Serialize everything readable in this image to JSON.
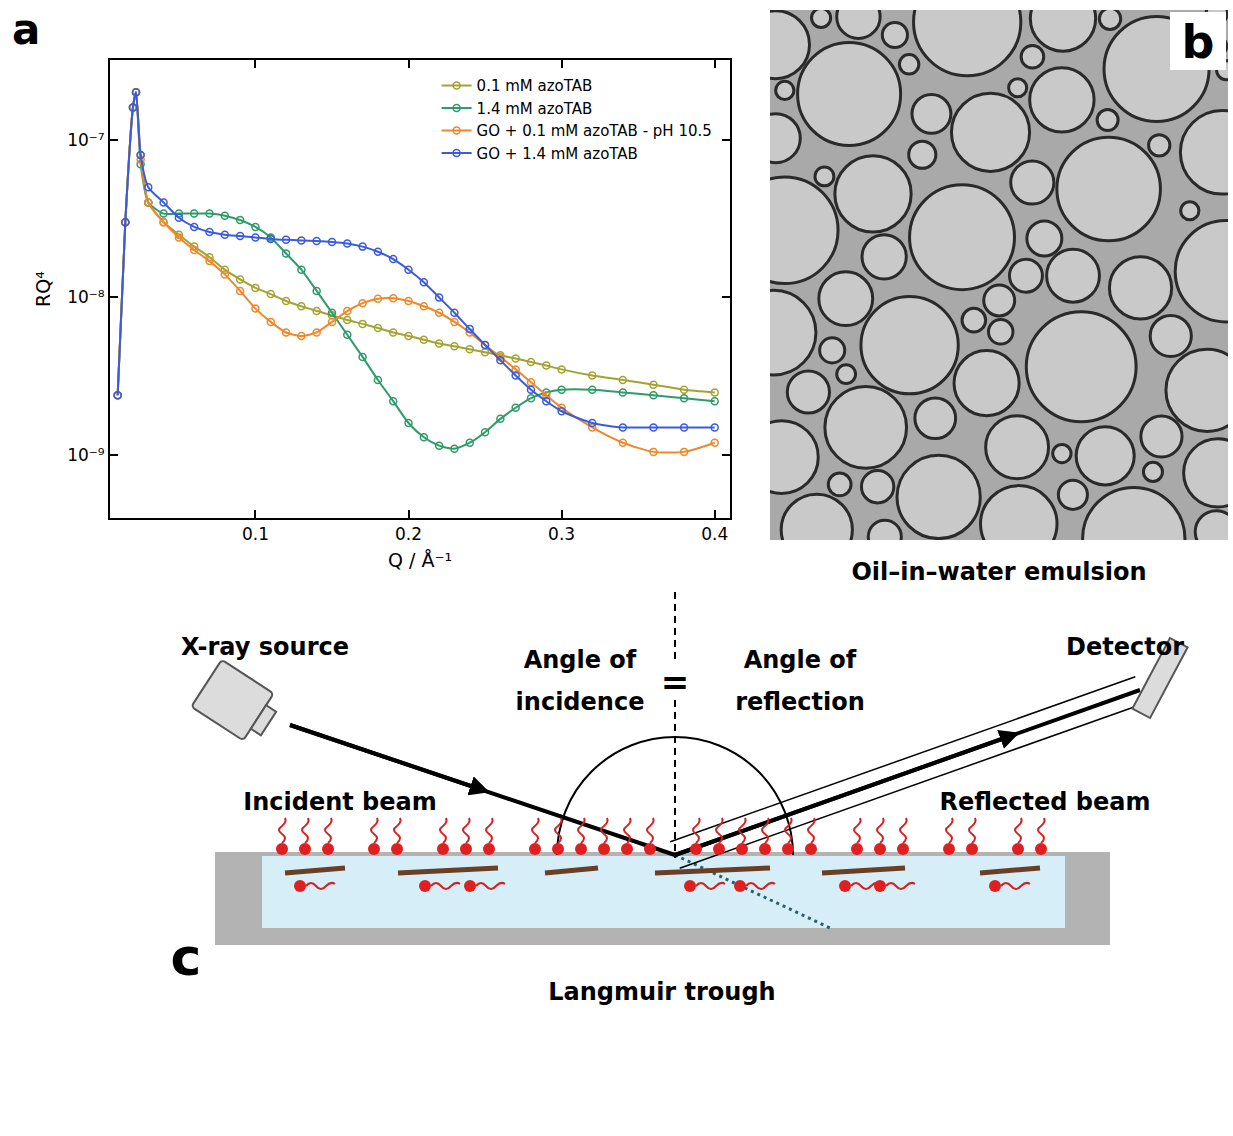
{
  "chart_data": {
    "type": "scatter",
    "x_label": "Q / Å⁻¹",
    "y_label": "RQ⁴",
    "x": [
      0.01,
      0.015,
      0.02,
      0.022,
      0.025,
      0.03,
      0.04,
      0.05,
      0.06,
      0.07,
      0.08,
      0.09,
      0.1,
      0.11,
      0.12,
      0.13,
      0.14,
      0.15,
      0.16,
      0.17,
      0.18,
      0.19,
      0.2,
      0.21,
      0.22,
      0.23,
      0.24,
      0.25,
      0.26,
      0.27,
      0.28,
      0.29,
      0.3,
      0.32,
      0.34,
      0.36,
      0.38,
      0.4
    ],
    "series": [
      {
        "name": "0.1 mM azoTAB",
        "color": "#a3a332",
        "marker": "circle-open",
        "line_style": "solid",
        "values": [
          2.4e-09,
          3e-08,
          1.6e-07,
          2e-07,
          8e-08,
          4e-08,
          3e-08,
          2.5e-08,
          2.1e-08,
          1.8e-08,
          1.5e-08,
          1.3e-08,
          1.15e-08,
          1.05e-08,
          9.5e-09,
          8.8e-09,
          8.2e-09,
          7.7e-09,
          7.2e-09,
          6.8e-09,
          6.4e-09,
          6e-09,
          5.7e-09,
          5.4e-09,
          5.1e-09,
          4.9e-09,
          4.7e-09,
          4.5e-09,
          4.3e-09,
          4.1e-09,
          3.9e-09,
          3.7e-09,
          3.5e-09,
          3.2e-09,
          3e-09,
          2.8e-09,
          2.6e-09,
          2.5e-09
        ]
      },
      {
        "name": "1.4 mM azoTAB",
        "color": "#2e9b6a",
        "marker": "circle-open",
        "line_style": "solid",
        "values": [
          2.4e-09,
          3e-08,
          1.6e-07,
          2e-07,
          7e-08,
          4e-08,
          3.4e-08,
          3.4e-08,
          3.4e-08,
          3.4e-08,
          3.3e-08,
          3.1e-08,
          2.8e-08,
          2.4e-08,
          1.9e-08,
          1.5e-08,
          1.1e-08,
          8e-09,
          5.8e-09,
          4.2e-09,
          3e-09,
          2.2e-09,
          1.6e-09,
          1.3e-09,
          1.15e-09,
          1.1e-09,
          1.2e-09,
          1.4e-09,
          1.7e-09,
          2e-09,
          2.3e-09,
          2.5e-09,
          2.6e-09,
          2.6e-09,
          2.5e-09,
          2.4e-09,
          2.3e-09,
          2.2e-09
        ]
      },
      {
        "name": "GO + 0.1 mM azoTAB - pH 10.5",
        "color": "#f0872a",
        "marker": "circle-open",
        "line_style": "solid",
        "values": [
          2.4e-09,
          3e-08,
          1.6e-07,
          2e-07,
          7.5e-08,
          4e-08,
          3e-08,
          2.4e-08,
          2e-08,
          1.7e-08,
          1.4e-08,
          1.1e-08,
          8.5e-09,
          7e-09,
          6e-09,
          5.7e-09,
          6e-09,
          7e-09,
          8.2e-09,
          9.2e-09,
          9.8e-09,
          9.9e-09,
          9.5e-09,
          8.8e-09,
          8e-09,
          7e-09,
          6e-09,
          5e-09,
          4.2e-09,
          3.5e-09,
          2.9e-09,
          2.4e-09,
          2e-09,
          1.5e-09,
          1.2e-09,
          1.05e-09,
          1.05e-09,
          1.2e-09
        ]
      },
      {
        "name": "GO + 1.4 mM azoTAB",
        "color": "#3b5bdb",
        "marker": "circle-open",
        "line_style": "solid",
        "values": [
          2.4e-09,
          3e-08,
          1.6e-07,
          2e-07,
          8e-08,
          5e-08,
          4e-08,
          3.2e-08,
          2.8e-08,
          2.6e-08,
          2.5e-08,
          2.45e-08,
          2.4e-08,
          2.35e-08,
          2.32e-08,
          2.3e-08,
          2.28e-08,
          2.25e-08,
          2.2e-08,
          2.1e-08,
          1.95e-08,
          1.75e-08,
          1.5e-08,
          1.25e-08,
          1e-08,
          8e-09,
          6.3e-09,
          5e-09,
          4e-09,
          3.2e-09,
          2.6e-09,
          2.2e-09,
          1.9e-09,
          1.6e-09,
          1.5e-09,
          1.5e-09,
          1.5e-09,
          1.5e-09
        ]
      }
    ],
    "xlim": [
      0.005,
      0.41
    ],
    "ylim": [
      4e-10,
      3.2e-07
    ],
    "xticks": [
      0.1,
      0.2,
      0.3,
      0.4
    ],
    "yticks": [
      {
        "value": 1e-09,
        "label": "10⁻⁹"
      },
      {
        "value": 1e-08,
        "label": "10⁻⁸"
      },
      {
        "value": 1e-07,
        "label": "10⁻⁷"
      }
    ],
    "log": "y",
    "grid": false,
    "legend": "top right"
  },
  "panel_a": {
    "label": "a"
  },
  "panel_b": {
    "label": "b",
    "caption": "Oil–in–water emulsion"
  },
  "panel_c": {
    "label": "c",
    "source": "X-ray source",
    "incidence": [
      "Angle of",
      "incidence"
    ],
    "equals": "=",
    "reflection": [
      "Angle of",
      "reflection"
    ],
    "detector": "Detector",
    "incident_beam": "Incident beam",
    "reflected_beam": "Reflected beam",
    "trough": "Langmuir trough"
  }
}
